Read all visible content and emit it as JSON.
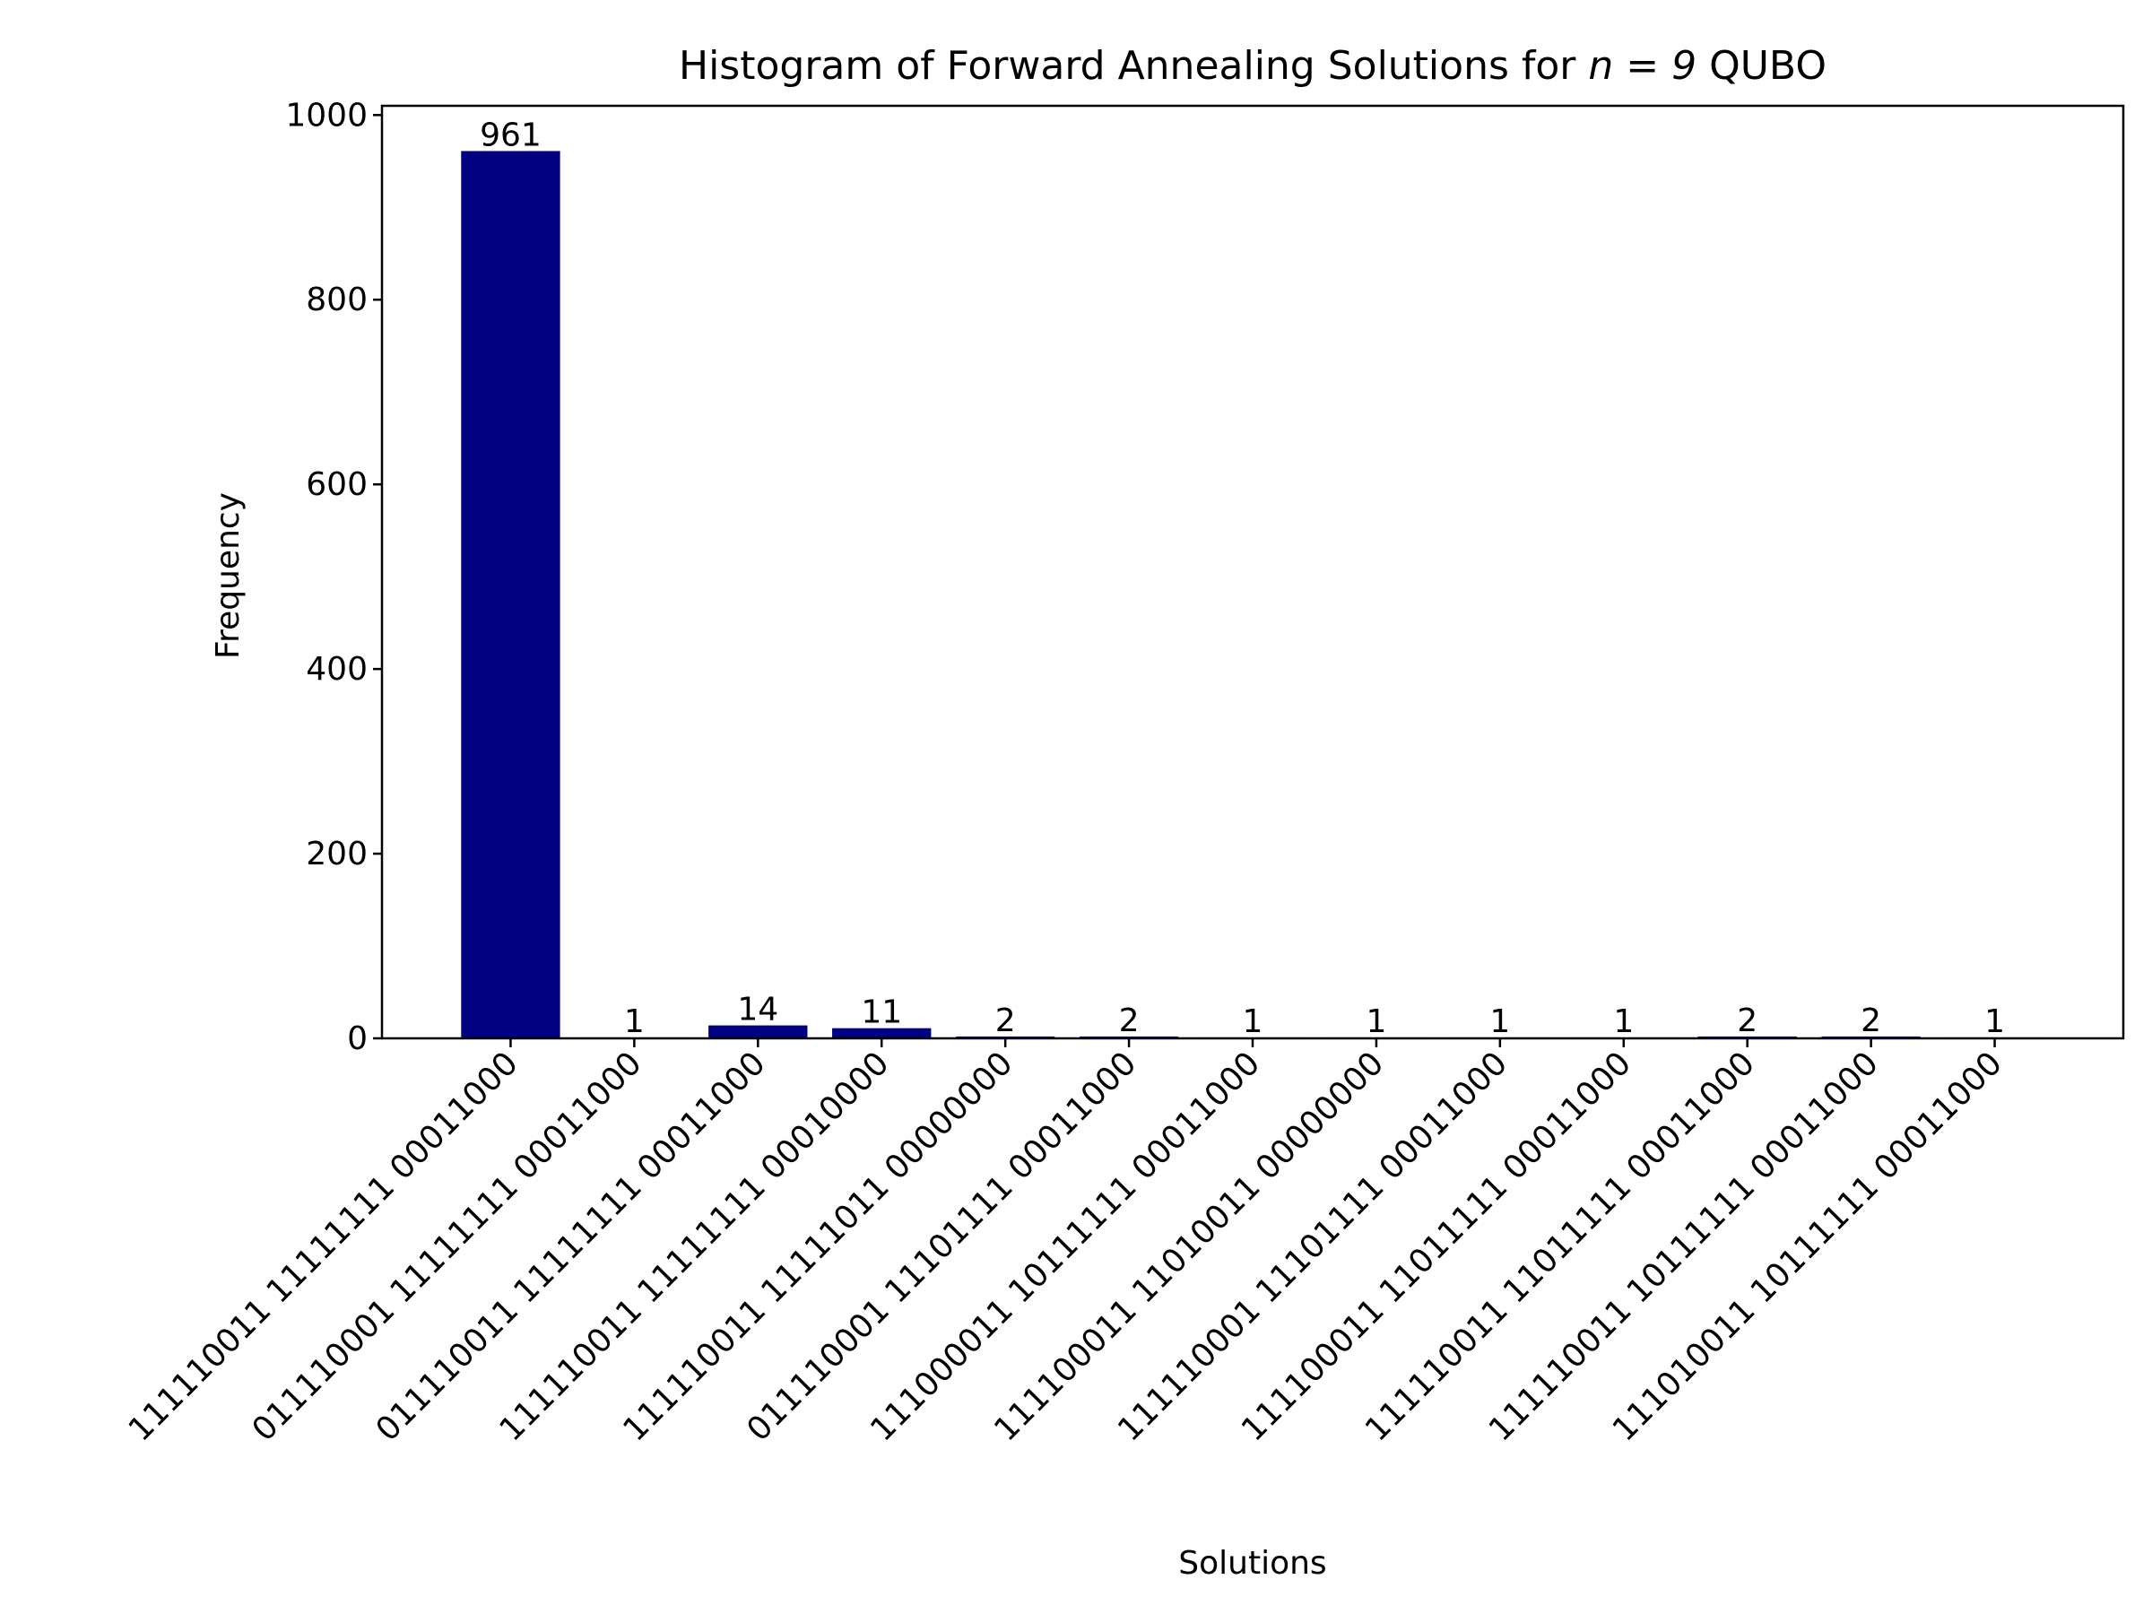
{
  "chart_data": {
    "type": "bar",
    "title_prefix": "Histogram of Forward Annealing Solutions for ",
    "title_math": "n = 9",
    "title_suffix": " QUBO",
    "xlabel": "Solutions",
    "ylabel": "Frequency",
    "ylim": [
      0,
      1010
    ],
    "yticks": [
      0,
      200,
      400,
      600,
      800,
      1000
    ],
    "grid": false,
    "bar_color": "#000080",
    "categories": [
      "111110011 11111111 00011000",
      "011110001 11111111 00011000",
      "011110011 11111111 00011000",
      "111110011 11111111 00010000",
      "111110011 11111011 00000000",
      "011110001 11101111 00011000",
      "111000011 10111111 00011000",
      "111100011 11010011 00000000",
      "111110001 11101111 00011000",
      "111100011 11011111 00011000",
      "111110011 11011111 00011000",
      "111110011 10111111 00011000",
      "111010011 10111111 00011000"
    ],
    "values": [
      961,
      1,
      14,
      11,
      2,
      2,
      1,
      1,
      1,
      1,
      2,
      2,
      1
    ]
  }
}
